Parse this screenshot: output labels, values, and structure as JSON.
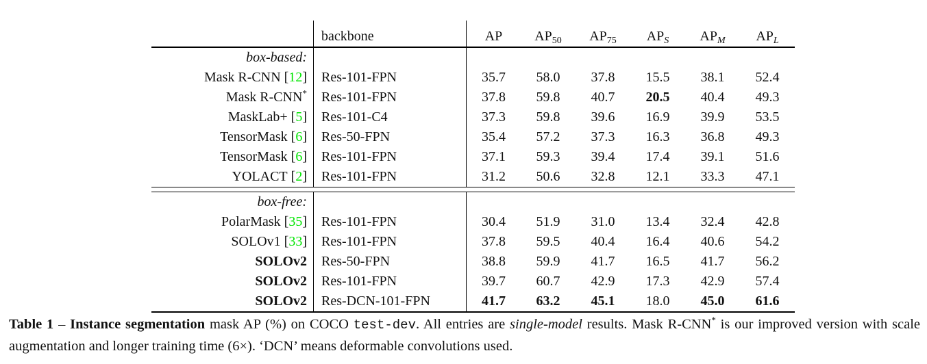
{
  "colors": {
    "citation_green": "#00e400",
    "text": "#111111",
    "background": "#ffffff"
  },
  "table": {
    "header": {
      "model_column_label": "",
      "backbone_label": "backbone",
      "metrics": [
        {
          "base": "AP",
          "sub": "",
          "italic_sub": false
        },
        {
          "base": "AP",
          "sub": "50",
          "italic_sub": false
        },
        {
          "base": "AP",
          "sub": "75",
          "italic_sub": false
        },
        {
          "base": "AP",
          "sub": "S",
          "italic_sub": true
        },
        {
          "base": "AP",
          "sub": "M",
          "italic_sub": true
        },
        {
          "base": "AP",
          "sub": "L",
          "italic_sub": true
        }
      ]
    },
    "sections": [
      {
        "label": "box-based:",
        "rows": [
          {
            "model": "Mask R-CNN",
            "cite": "12",
            "sup": "",
            "backbone": "Res-101-FPN",
            "bold_model": false,
            "values": [
              "35.7",
              "58.0",
              "37.8",
              "15.5",
              "38.1",
              "52.4"
            ],
            "bold_values": []
          },
          {
            "model": "Mask R-CNN",
            "cite": "",
            "sup": "*",
            "backbone": "Res-101-FPN",
            "bold_model": false,
            "values": [
              "37.8",
              "59.8",
              "40.7",
              "20.5",
              "40.4",
              "49.3"
            ],
            "bold_values": [
              3
            ]
          },
          {
            "model": "MaskLab+",
            "cite": "5",
            "sup": "",
            "backbone": "Res-101-C4",
            "bold_model": false,
            "values": [
              "37.3",
              "59.8",
              "39.6",
              "16.9",
              "39.9",
              "53.5"
            ],
            "bold_values": []
          },
          {
            "model": "TensorMask",
            "cite": "6",
            "sup": "",
            "backbone": "Res-50-FPN",
            "bold_model": false,
            "values": [
              "35.4",
              "57.2",
              "37.3",
              "16.3",
              "36.8",
              "49.3"
            ],
            "bold_values": []
          },
          {
            "model": "TensorMask",
            "cite": "6",
            "sup": "",
            "backbone": "Res-101-FPN",
            "bold_model": false,
            "values": [
              "37.1",
              "59.3",
              "39.4",
              "17.4",
              "39.1",
              "51.6"
            ],
            "bold_values": []
          },
          {
            "model": "YOLACT",
            "cite": "2",
            "sup": "",
            "backbone": "Res-101-FPN",
            "bold_model": false,
            "values": [
              "31.2",
              "50.6",
              "32.8",
              "12.1",
              "33.3",
              "47.1"
            ],
            "bold_values": []
          }
        ]
      },
      {
        "label": "box-free:",
        "rows": [
          {
            "model": "PolarMask",
            "cite": "35",
            "sup": "",
            "backbone": "Res-101-FPN",
            "bold_model": false,
            "values": [
              "30.4",
              "51.9",
              "31.0",
              "13.4",
              "32.4",
              "42.8"
            ],
            "bold_values": []
          },
          {
            "model": "SOLOv1",
            "cite": "33",
            "sup": "",
            "backbone": "Res-101-FPN",
            "bold_model": false,
            "values": [
              "37.8",
              "59.5",
              "40.4",
              "16.4",
              "40.6",
              "54.2"
            ],
            "bold_values": []
          },
          {
            "model": "SOLOv2",
            "cite": "",
            "sup": "",
            "backbone": "Res-50-FPN",
            "bold_model": true,
            "values": [
              "38.8",
              "59.9",
              "41.7",
              "16.5",
              "41.7",
              "56.2"
            ],
            "bold_values": []
          },
          {
            "model": "SOLOv2",
            "cite": "",
            "sup": "",
            "backbone": "Res-101-FPN",
            "bold_model": true,
            "values": [
              "39.7",
              "60.7",
              "42.9",
              "17.3",
              "42.9",
              "57.4"
            ],
            "bold_values": []
          },
          {
            "model": "SOLOv2",
            "cite": "",
            "sup": "",
            "backbone": "Res-DCN-101-FPN",
            "bold_model": true,
            "values": [
              "41.7",
              "63.2",
              "45.1",
              "18.0",
              "45.0",
              "61.6"
            ],
            "bold_values": [
              0,
              1,
              2,
              4,
              5
            ]
          }
        ]
      }
    ]
  },
  "caption": {
    "parts": [
      {
        "t": "Table 1",
        "s": "bold"
      },
      {
        "t": " – ",
        "s": "normal"
      },
      {
        "t": "Instance segmentation",
        "s": "bold"
      },
      {
        "t": " mask AP (%) on COCO ",
        "s": "normal"
      },
      {
        "t": "test-dev",
        "s": "mono"
      },
      {
        "t": ".  All entries are ",
        "s": "normal"
      },
      {
        "t": "single-model",
        "s": "italic"
      },
      {
        "t": " results.  Mask R-CNN",
        "s": "normal"
      },
      {
        "t": "*",
        "s": "sup"
      },
      {
        "t": " is our improved version with scale augmentation and longer training time (6×). ‘DCN’ means deformable convolutions used.",
        "s": "normal"
      }
    ]
  }
}
